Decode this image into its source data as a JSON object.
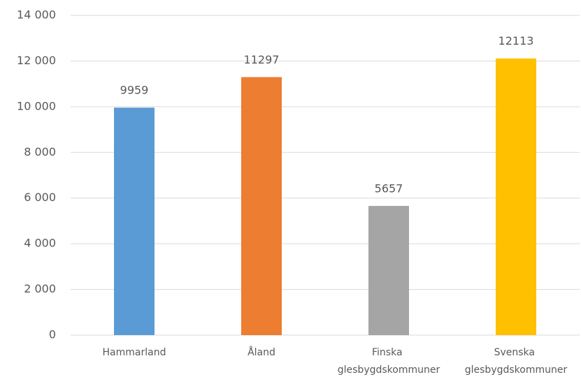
{
  "chart_data": {
    "type": "bar",
    "categories": [
      "Hammarland",
      "Åland",
      "Finska glesbygdskommuner",
      "Svenska glesbygdskommuner"
    ],
    "values": [
      9959,
      11297,
      5657,
      12113
    ],
    "colors": [
      "#5b9bd5",
      "#ed7d31",
      "#a5a5a5",
      "#ffc000"
    ],
    "ylim": [
      0,
      14000
    ],
    "yticks": [
      0,
      {
        "value": 2000,
        "label": "2 000"
      },
      {
        "value": 4000,
        "label": "4 000"
      },
      {
        "value": 6000,
        "label": "6 000"
      },
      {
        "value": 8000,
        "label": "8 000"
      },
      {
        "value": 10000,
        "label": "10 000"
      },
      {
        "value": 12000,
        "label": "12 000"
      },
      {
        "value": 14000,
        "label": "14 000"
      }
    ],
    "grid": true
  }
}
